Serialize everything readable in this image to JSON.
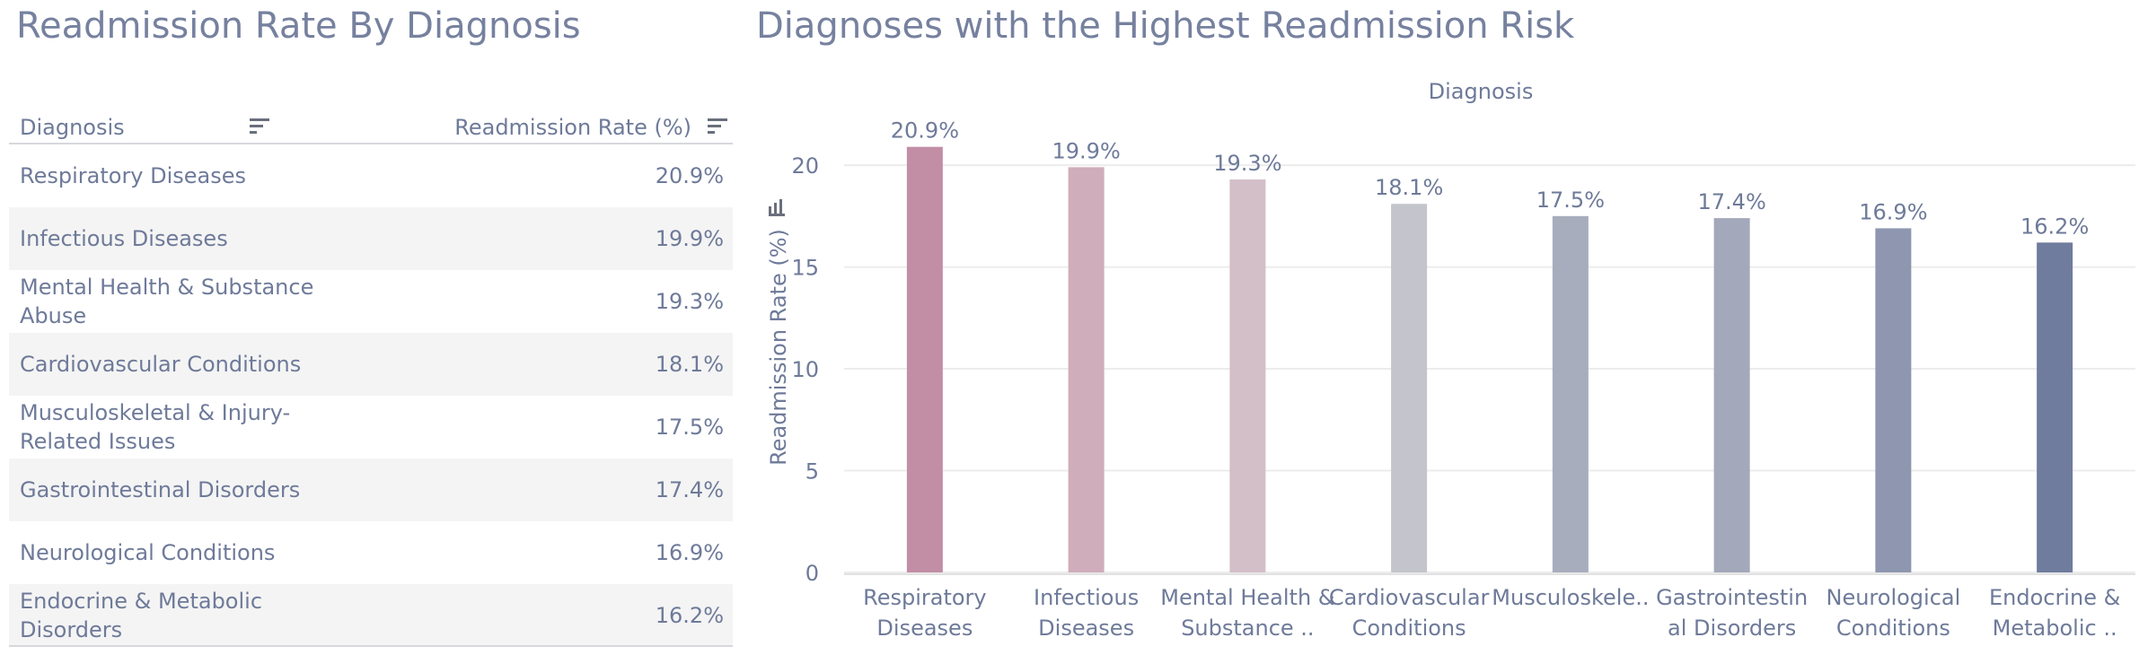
{
  "left_title": "Readmission Rate By Diagnosis",
  "right_title": "Diagnoses with the Highest Readmission Risk",
  "table": {
    "headers": {
      "diagnosis": "Diagnosis",
      "rate": "Readmission Rate (%)"
    },
    "rows": [
      {
        "name": "Respiratory Diseases",
        "value": "20.9%"
      },
      {
        "name": "Infectious Diseases",
        "value": "19.9%"
      },
      {
        "name": "Mental Health & Substance Abuse",
        "value": "19.3%"
      },
      {
        "name": "Cardiovascular Conditions",
        "value": "18.1%"
      },
      {
        "name": "Musculoskeletal & Injury-Related Issues",
        "value": "17.5%"
      },
      {
        "name": "Gastrointestinal Disorders",
        "value": "17.4%"
      },
      {
        "name": "Neurological Conditions",
        "value": "16.9%"
      },
      {
        "name": "Endocrine & Metabolic Disorders",
        "value": "16.2%"
      }
    ]
  },
  "chart_data": {
    "type": "bar",
    "xlabel": "Diagnosis",
    "ylabel": "Readmission Rate (%)",
    "categories": [
      "Respiratory Diseases",
      "Infectious Diseases",
      "Mental Health & Substance ..",
      "Cardiovascular Conditions",
      "Musculoskele..",
      "Gastrointestin al Disorders",
      "Neurological Conditions",
      "Endocrine & Metabolic .."
    ],
    "values": [
      20.9,
      19.9,
      19.3,
      18.1,
      17.5,
      17.4,
      16.9,
      16.2
    ],
    "data_labels": [
      "20.9%",
      "19.9%",
      "19.3%",
      "18.1%",
      "17.5%",
      "17.4%",
      "16.9%",
      "16.2%"
    ],
    "y_ticks": [
      0,
      5,
      10,
      15,
      20
    ],
    "ylim": [
      0,
      23
    ],
    "grid": true,
    "colors": [
      "#c18ea5",
      "#cfadbb",
      "#d3bfc7",
      "#c3c4cc",
      "#a8adbd",
      "#a3a8ba",
      "#8f97b0",
      "#707c9e"
    ]
  }
}
